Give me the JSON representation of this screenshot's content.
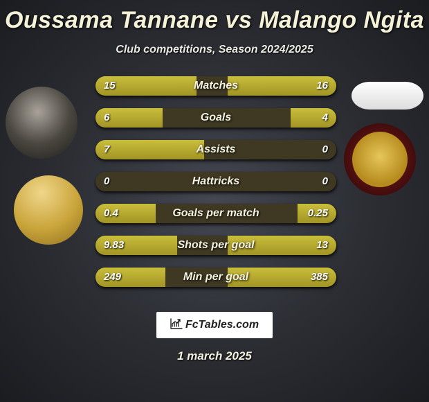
{
  "title": "Oussama Tannane vs Malango Ngita",
  "subtitle": "Club competitions, Season 2024/2025",
  "date": "1 march 2025",
  "brand": "FcTables.com",
  "palette": {
    "bar_fill": "#b6a92f",
    "bar_bg": "#3f3923",
    "text": "#f5f2d8"
  },
  "stats": {
    "bar_area_width": 348,
    "rows": [
      {
        "label": "Matches",
        "left_val": "15",
        "right_val": "16",
        "left_pct": 42,
        "right_pct": 45
      },
      {
        "label": "Goals",
        "left_val": "6",
        "right_val": "4",
        "left_pct": 28,
        "right_pct": 19
      },
      {
        "label": "Assists",
        "left_val": "7",
        "right_val": "0",
        "left_pct": 45,
        "right_pct": 0
      },
      {
        "label": "Hattricks",
        "left_val": "0",
        "right_val": "0",
        "left_pct": 0,
        "right_pct": 0
      },
      {
        "label": "Goals per match",
        "left_val": "0.4",
        "right_val": "0.25",
        "left_pct": 25,
        "right_pct": 16
      },
      {
        "label": "Shots per goal",
        "left_val": "9.83",
        "right_val": "13",
        "left_pct": 34,
        "right_pct": 45
      },
      {
        "label": "Min per goal",
        "left_val": "249",
        "right_val": "385",
        "left_pct": 29,
        "right_pct": 45
      }
    ]
  },
  "avatars": {
    "player1": "player-photo",
    "player2": "trophy-icon",
    "club1": "ellipse-badge",
    "club2": "club-crest"
  }
}
